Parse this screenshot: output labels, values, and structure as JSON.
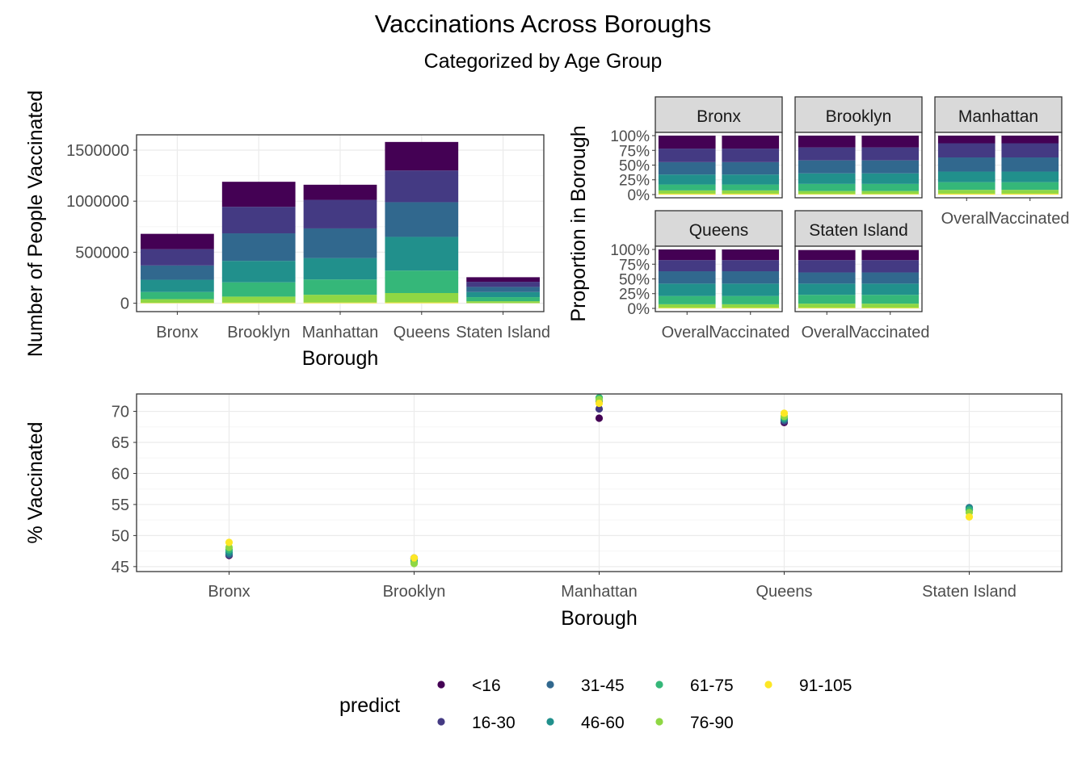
{
  "title": "Vaccinations Across Boroughs",
  "subtitle": "Categorized by Age Group",
  "colors": {
    "<16": "#440154",
    "16-30": "#443A83",
    "31-45": "#31688E",
    "46-60": "#21908C",
    "61-75": "#35B779",
    "76-90": "#8FD744",
    "91-105": "#FDE725"
  },
  "legend": {
    "title": "predict",
    "items": [
      "<16",
      "16-30",
      "31-45",
      "46-60",
      "61-75",
      "76-90",
      "91-105"
    ]
  },
  "chart_data": [
    {
      "type": "bar",
      "stacked": true,
      "xlabel": "Borough",
      "ylabel": "Number of People Vaccinated",
      "ylim": [
        0,
        1650000
      ],
      "yticks": [
        0,
        500000,
        1000000,
        1500000
      ],
      "ytick_labels": [
        "0",
        "500000",
        "1000000",
        "1500000"
      ],
      "grid": true,
      "categories": [
        "Bronx",
        "Brooklyn",
        "Manhattan",
        "Queens",
        "Staten Island"
      ],
      "series": [
        {
          "name": "91-105",
          "values": [
            4000,
            6000,
            7000,
            8000,
            2000
          ]
        },
        {
          "name": "76-90",
          "values": [
            36000,
            59000,
            76000,
            92000,
            18000
          ]
        },
        {
          "name": "61-75",
          "values": [
            70000,
            140000,
            150000,
            220000,
            40000
          ]
        },
        {
          "name": "46-60",
          "values": [
            120000,
            210000,
            210000,
            330000,
            50000
          ]
        },
        {
          "name": "31-45",
          "values": [
            140000,
            270000,
            290000,
            340000,
            50000
          ]
        },
        {
          "name": "16-30",
          "values": [
            160000,
            260000,
            280000,
            310000,
            50000
          ]
        },
        {
          "name": "<16",
          "values": [
            150000,
            245000,
            148000,
            280000,
            45000
          ]
        }
      ]
    },
    {
      "type": "bar",
      "stacked": true,
      "normalized": true,
      "ylabel": "Proportion in Borough",
      "yticks": [
        0,
        0.25,
        0.5,
        0.75,
        1.0
      ],
      "ytick_labels": [
        "0%",
        "25%",
        "50%",
        "75%",
        "100%"
      ],
      "categories": [
        "Overall",
        "Vaccinated"
      ],
      "facets": [
        {
          "label": "Bronx",
          "bars": [
            [
              0.015,
              0.055,
              0.1,
              0.17,
              0.21,
              0.23,
              0.22
            ],
            [
              0.015,
              0.055,
              0.1,
              0.17,
              0.21,
              0.23,
              0.22
            ]
          ]
        },
        {
          "label": "Brooklyn",
          "bars": [
            [
              0.01,
              0.05,
              0.12,
              0.18,
              0.22,
              0.22,
              0.2
            ],
            [
              0.01,
              0.05,
              0.12,
              0.18,
              0.22,
              0.22,
              0.2
            ]
          ]
        },
        {
          "label": "Manhattan",
          "bars": [
            [
              0.015,
              0.065,
              0.13,
              0.18,
              0.24,
              0.24,
              0.13
            ],
            [
              0.015,
              0.065,
              0.13,
              0.18,
              0.24,
              0.24,
              0.13
            ]
          ]
        },
        {
          "label": "Queens",
          "bars": [
            [
              0.01,
              0.06,
              0.14,
              0.21,
              0.21,
              0.19,
              0.18
            ],
            [
              0.01,
              0.06,
              0.14,
              0.21,
              0.21,
              0.19,
              0.18
            ]
          ]
        },
        {
          "label": "Staten Island",
          "bars": [
            [
              0.01,
              0.07,
              0.15,
              0.19,
              0.19,
              0.21,
              0.17
            ],
            [
              0.01,
              0.07,
              0.15,
              0.19,
              0.19,
              0.21,
              0.17
            ]
          ]
        }
      ],
      "series_order": [
        "91-105",
        "76-90",
        "61-75",
        "46-60",
        "31-45",
        "16-30",
        "<16"
      ]
    },
    {
      "type": "scatter",
      "xlabel": "Borough",
      "ylabel": "% Vaccinated",
      "ylim": [
        44.2,
        72.8
      ],
      "yticks": [
        45,
        50,
        55,
        60,
        65,
        70
      ],
      "ytick_labels": [
        "45",
        "50",
        "55",
        "60",
        "65",
        "70"
      ],
      "grid": true,
      "categories": [
        "Bronx",
        "Brooklyn",
        "Manhattan",
        "Queens",
        "Staten Island"
      ],
      "series": [
        {
          "name": "<16",
          "values": [
            46.8,
            46.3,
            68.9,
            68.2,
            54.2
          ]
        },
        {
          "name": "16-30",
          "values": [
            46.9,
            46.4,
            70.4,
            68.4,
            54.3
          ]
        },
        {
          "name": "31-45",
          "values": [
            47.0,
            46.3,
            71.6,
            68.6,
            54.5
          ]
        },
        {
          "name": "46-60",
          "values": [
            47.3,
            46.0,
            72.1,
            68.8,
            54.4
          ]
        },
        {
          "name": "61-75",
          "values": [
            47.7,
            45.7,
            72.2,
            69.0,
            54.1
          ]
        },
        {
          "name": "76-90",
          "values": [
            48.1,
            45.5,
            71.9,
            69.2,
            53.7
          ]
        },
        {
          "name": "91-105",
          "values": [
            48.9,
            46.4,
            71.3,
            69.7,
            53.0
          ]
        }
      ]
    }
  ]
}
